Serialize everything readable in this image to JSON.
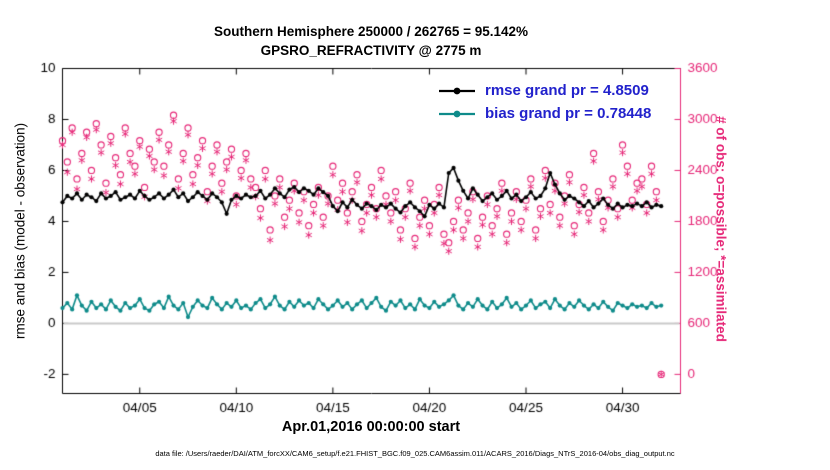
{
  "title": {
    "line1": "Southern Hemisphere 250000 / 262765 = 95.142%",
    "line2": "GPSRO_REFRACTIVITY @ 2775 m"
  },
  "legend": {
    "text_color": "#2222cc",
    "items": [
      {
        "label": "rmse grand pr = 4.8509",
        "series": "rmse",
        "color": "#000000"
      },
      {
        "label": "bias grand pr = 0.78448",
        "series": "bias",
        "color": "#0e8b8a"
      }
    ]
  },
  "axes": {
    "x": {
      "label": "Apr.01,2016 00:00:00 start",
      "ticks": [
        "04/05",
        "04/10",
        "04/15",
        "04/20",
        "04/25",
        "04/30"
      ],
      "tick_days": [
        5,
        10,
        15,
        20,
        25,
        30
      ]
    },
    "left": {
      "label": "rmse and bias (model - observation)",
      "ticks": [
        10,
        8,
        6,
        4,
        2,
        0,
        -2
      ]
    },
    "right": {
      "label": "# of obs: o=possible; *=assimilated",
      "ticks": [
        3600,
        3000,
        2400,
        1800,
        1200,
        600,
        0
      ]
    }
  },
  "caption": "data file: /Users/raeder/DAI/ATM_forcXX/CAM6_setup/f.e21.FHIST_BGC.f09_025.CAM6assim.011/ACARS_2016/Diags_NTrS_2016-04/obs_diag_output.nc",
  "colors": {
    "rmse": "#000000",
    "bias": "#0e8b8a",
    "obs": "#e62878",
    "zero_line": "#c9c9c9",
    "axis": "#000000",
    "legend_text": "#2222cc"
  },
  "chart_data": {
    "type": "line+scatter",
    "x_start_day": 1.0,
    "x_step_days": 0.25,
    "n_points": 125,
    "x_range_days": [
      1,
      33
    ],
    "left_range": [
      -2.75,
      10
    ],
    "right_range": [
      -225,
      3600
    ],
    "series": [
      {
        "name": "rmse",
        "type": "line",
        "axis": "left",
        "grand_value": 4.8509,
        "values": [
          4.75,
          5.0,
          4.9,
          5.1,
          4.85,
          5.05,
          4.95,
          4.8,
          5.1,
          4.9,
          5.0,
          5.15,
          4.85,
          4.95,
          5.05,
          4.9,
          5.2,
          5.0,
          4.85,
          4.95,
          5.1,
          4.9,
          5.05,
          5.25,
          4.95,
          5.1,
          4.8,
          4.95,
          5.15,
          5.0,
          4.85,
          5.1,
          4.95,
          4.75,
          4.3,
          4.85,
          5.0,
          4.9,
          5.05,
          4.95,
          5.0,
          5.2,
          4.9,
          5.05,
          5.3,
          5.1,
          4.95,
          5.25,
          5.35,
          5.15,
          5.3,
          5.2,
          5.05,
          5.3,
          5.15,
          5.0,
          4.6,
          4.4,
          4.75,
          4.55,
          4.85,
          4.65,
          4.5,
          4.7,
          4.6,
          4.45,
          4.65,
          4.55,
          4.7,
          4.5,
          4.35,
          4.6,
          4.75,
          4.55,
          4.4,
          4.2,
          4.65,
          4.5,
          4.7,
          4.55,
          5.9,
          6.1,
          5.6,
          5.2,
          4.9,
          5.3,
          5.05,
          4.8,
          4.95,
          5.1,
          4.85,
          5.0,
          5.2,
          4.9,
          5.05,
          4.8,
          4.95,
          5.15,
          4.9,
          5.0,
          5.3,
          5.9,
          5.45,
          5.1,
          4.85,
          5.0,
          4.9,
          4.75,
          4.6,
          4.8,
          4.55,
          4.7,
          4.9,
          4.65,
          4.5,
          4.7,
          4.55,
          4.65,
          4.6,
          4.7,
          4.6,
          4.75,
          4.55,
          4.65,
          4.6
        ]
      },
      {
        "name": "bias",
        "type": "line",
        "axis": "left",
        "grand_value": 0.78448,
        "values": [
          0.6,
          0.8,
          0.55,
          1.1,
          0.7,
          0.5,
          0.85,
          0.6,
          0.75,
          0.55,
          0.9,
          0.65,
          0.5,
          0.8,
          0.6,
          0.7,
          0.95,
          0.6,
          0.5,
          0.75,
          0.85,
          0.6,
          1.05,
          0.7,
          0.55,
          0.8,
          0.25,
          0.65,
          0.9,
          0.7,
          0.6,
          1.0,
          0.75,
          0.55,
          0.8,
          0.65,
          0.9,
          0.6,
          0.7,
          0.55,
          0.8,
          0.95,
          0.6,
          0.75,
          1.05,
          0.7,
          0.55,
          0.85,
          0.65,
          0.9,
          0.7,
          0.8,
          0.6,
          0.95,
          0.75,
          0.55,
          0.7,
          0.9,
          0.65,
          0.8,
          0.55,
          0.75,
          0.9,
          0.6,
          0.8,
          1.0,
          0.65,
          0.5,
          0.85,
          0.7,
          0.9,
          0.6,
          0.75,
          0.55,
          0.95,
          0.7,
          0.6,
          0.85,
          0.65,
          0.75,
          0.9,
          1.1,
          0.7,
          0.55,
          0.8,
          0.65,
          0.95,
          0.7,
          0.55,
          0.85,
          0.6,
          0.75,
          1.0,
          0.65,
          0.8,
          0.55,
          0.7,
          0.9,
          0.6,
          0.75,
          0.85,
          0.6,
          0.95,
          0.7,
          0.55,
          0.8,
          0.65,
          0.9,
          0.7,
          0.55,
          0.75,
          0.6,
          0.85,
          0.65,
          0.5,
          0.8,
          0.7,
          0.6,
          0.75,
          0.65,
          0.7,
          0.6,
          0.8,
          0.65,
          0.7
        ]
      },
      {
        "name": "possible_obs",
        "type": "scatter",
        "marker": "circle",
        "axis": "right",
        "values": [
          2750,
          2500,
          2900,
          2300,
          2600,
          2850,
          2400,
          2950,
          2700,
          2250,
          2800,
          2550,
          2350,
          2900,
          2600,
          2450,
          2750,
          2200,
          2650,
          2500,
          2850,
          2450,
          2700,
          3050,
          2300,
          2600,
          2900,
          2350,
          2550,
          2750,
          2150,
          2450,
          2700,
          2250,
          2500,
          2650,
          2100,
          2400,
          2600,
          2300,
          2200,
          1950,
          2400,
          1700,
          2100,
          2300,
          1850,
          2050,
          2250,
          1900,
          2150,
          1750,
          2000,
          2200,
          1850,
          2100,
          2450,
          2050,
          2250,
          1900,
          2150,
          2350,
          1800,
          2000,
          2200,
          1950,
          2400,
          2100,
          1900,
          2150,
          1700,
          1950,
          2250,
          1600,
          1850,
          2050,
          1750,
          2000,
          2200,
          1650,
          1550,
          1800,
          2050,
          1700,
          1900,
          2150,
          1600,
          1850,
          2100,
          1750,
          1950,
          2250,
          1650,
          1900,
          2150,
          1800,
          2050,
          2300,
          1700,
          1950,
          2400,
          2000,
          2250,
          1850,
          2100,
          2350,
          1750,
          2000,
          2200,
          1900,
          2600,
          2150,
          1800,
          2050,
          2300,
          1950,
          2700,
          2450,
          2050,
          2250,
          2300,
          2000,
          2450,
          2150,
          0
        ]
      },
      {
        "name": "assimilated_obs",
        "type": "scatter",
        "marker": "asterisk",
        "axis": "right",
        "values": [
          2700,
          2380,
          2850,
          2180,
          2520,
          2790,
          2300,
          2880,
          2610,
          2140,
          2720,
          2460,
          2240,
          2830,
          2500,
          2360,
          2680,
          2090,
          2570,
          2410,
          2760,
          2340,
          2620,
          2980,
          2190,
          2510,
          2820,
          2240,
          2460,
          2660,
          2040,
          2360,
          2620,
          2150,
          2410,
          2560,
          2000,
          2310,
          2520,
          2200,
          2090,
          1840,
          2300,
          1580,
          2010,
          2200,
          1740,
          1950,
          2160,
          1790,
          2050,
          1640,
          1900,
          2110,
          1750,
          2010,
          2350,
          1940,
          2150,
          1790,
          2050,
          2260,
          1690,
          1900,
          2110,
          1850,
          2300,
          2000,
          1800,
          2050,
          1590,
          1850,
          2160,
          1500,
          1750,
          1950,
          1650,
          1900,
          2110,
          1540,
          1450,
          1700,
          1960,
          1600,
          1800,
          2060,
          1500,
          1760,
          2000,
          1650,
          1860,
          2160,
          1550,
          1800,
          2060,
          1700,
          1950,
          2210,
          1600,
          1860,
          2310,
          1900,
          2160,
          1750,
          2010,
          2260,
          1650,
          1910,
          2110,
          1800,
          2510,
          2060,
          1700,
          1960,
          2210,
          1850,
          2610,
          2360,
          1960,
          2160,
          2210,
          1900,
          2360,
          2050,
          0
        ]
      }
    ]
  }
}
